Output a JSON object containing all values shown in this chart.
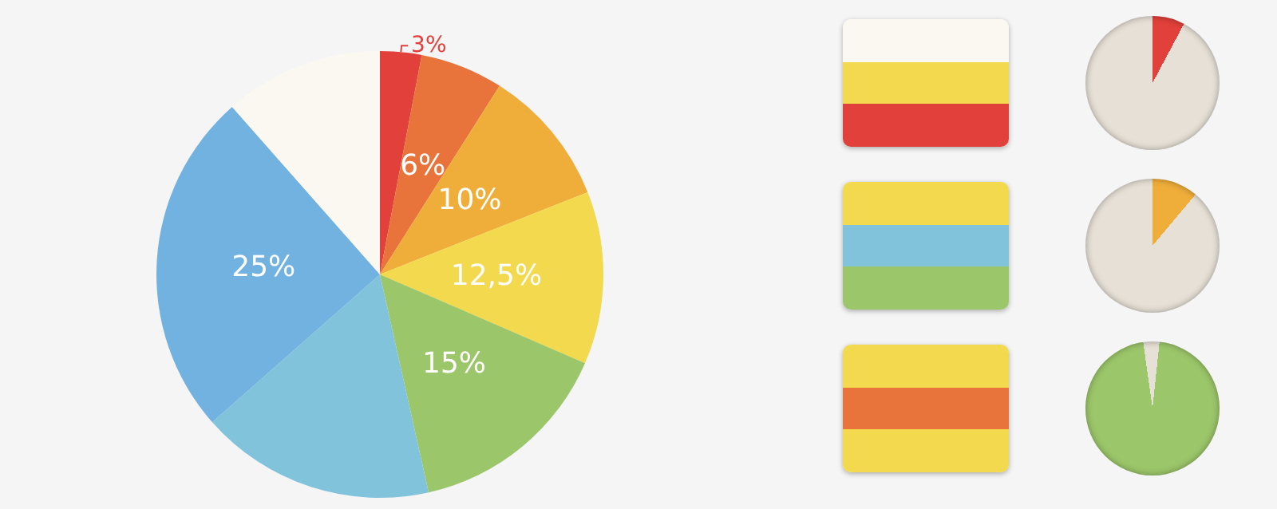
{
  "chart_data": {
    "type": "pie",
    "categories": [
      null,
      null,
      null,
      null,
      null,
      null,
      null,
      null
    ],
    "values": [
      3,
      6,
      10,
      12.5,
      15,
      17,
      25,
      11.5
    ],
    "colors": [
      "#e2403a",
      "#e8743b",
      "#efae3a",
      "#f2d94e",
      "#9cc66a",
      "#82c3dc",
      "#72b2e1",
      "#fbf8f1"
    ],
    "value_labels": [
      "3%",
      "6%",
      "10%",
      "12,5%",
      "15%",
      null,
      "25%",
      null
    ]
  }
}
